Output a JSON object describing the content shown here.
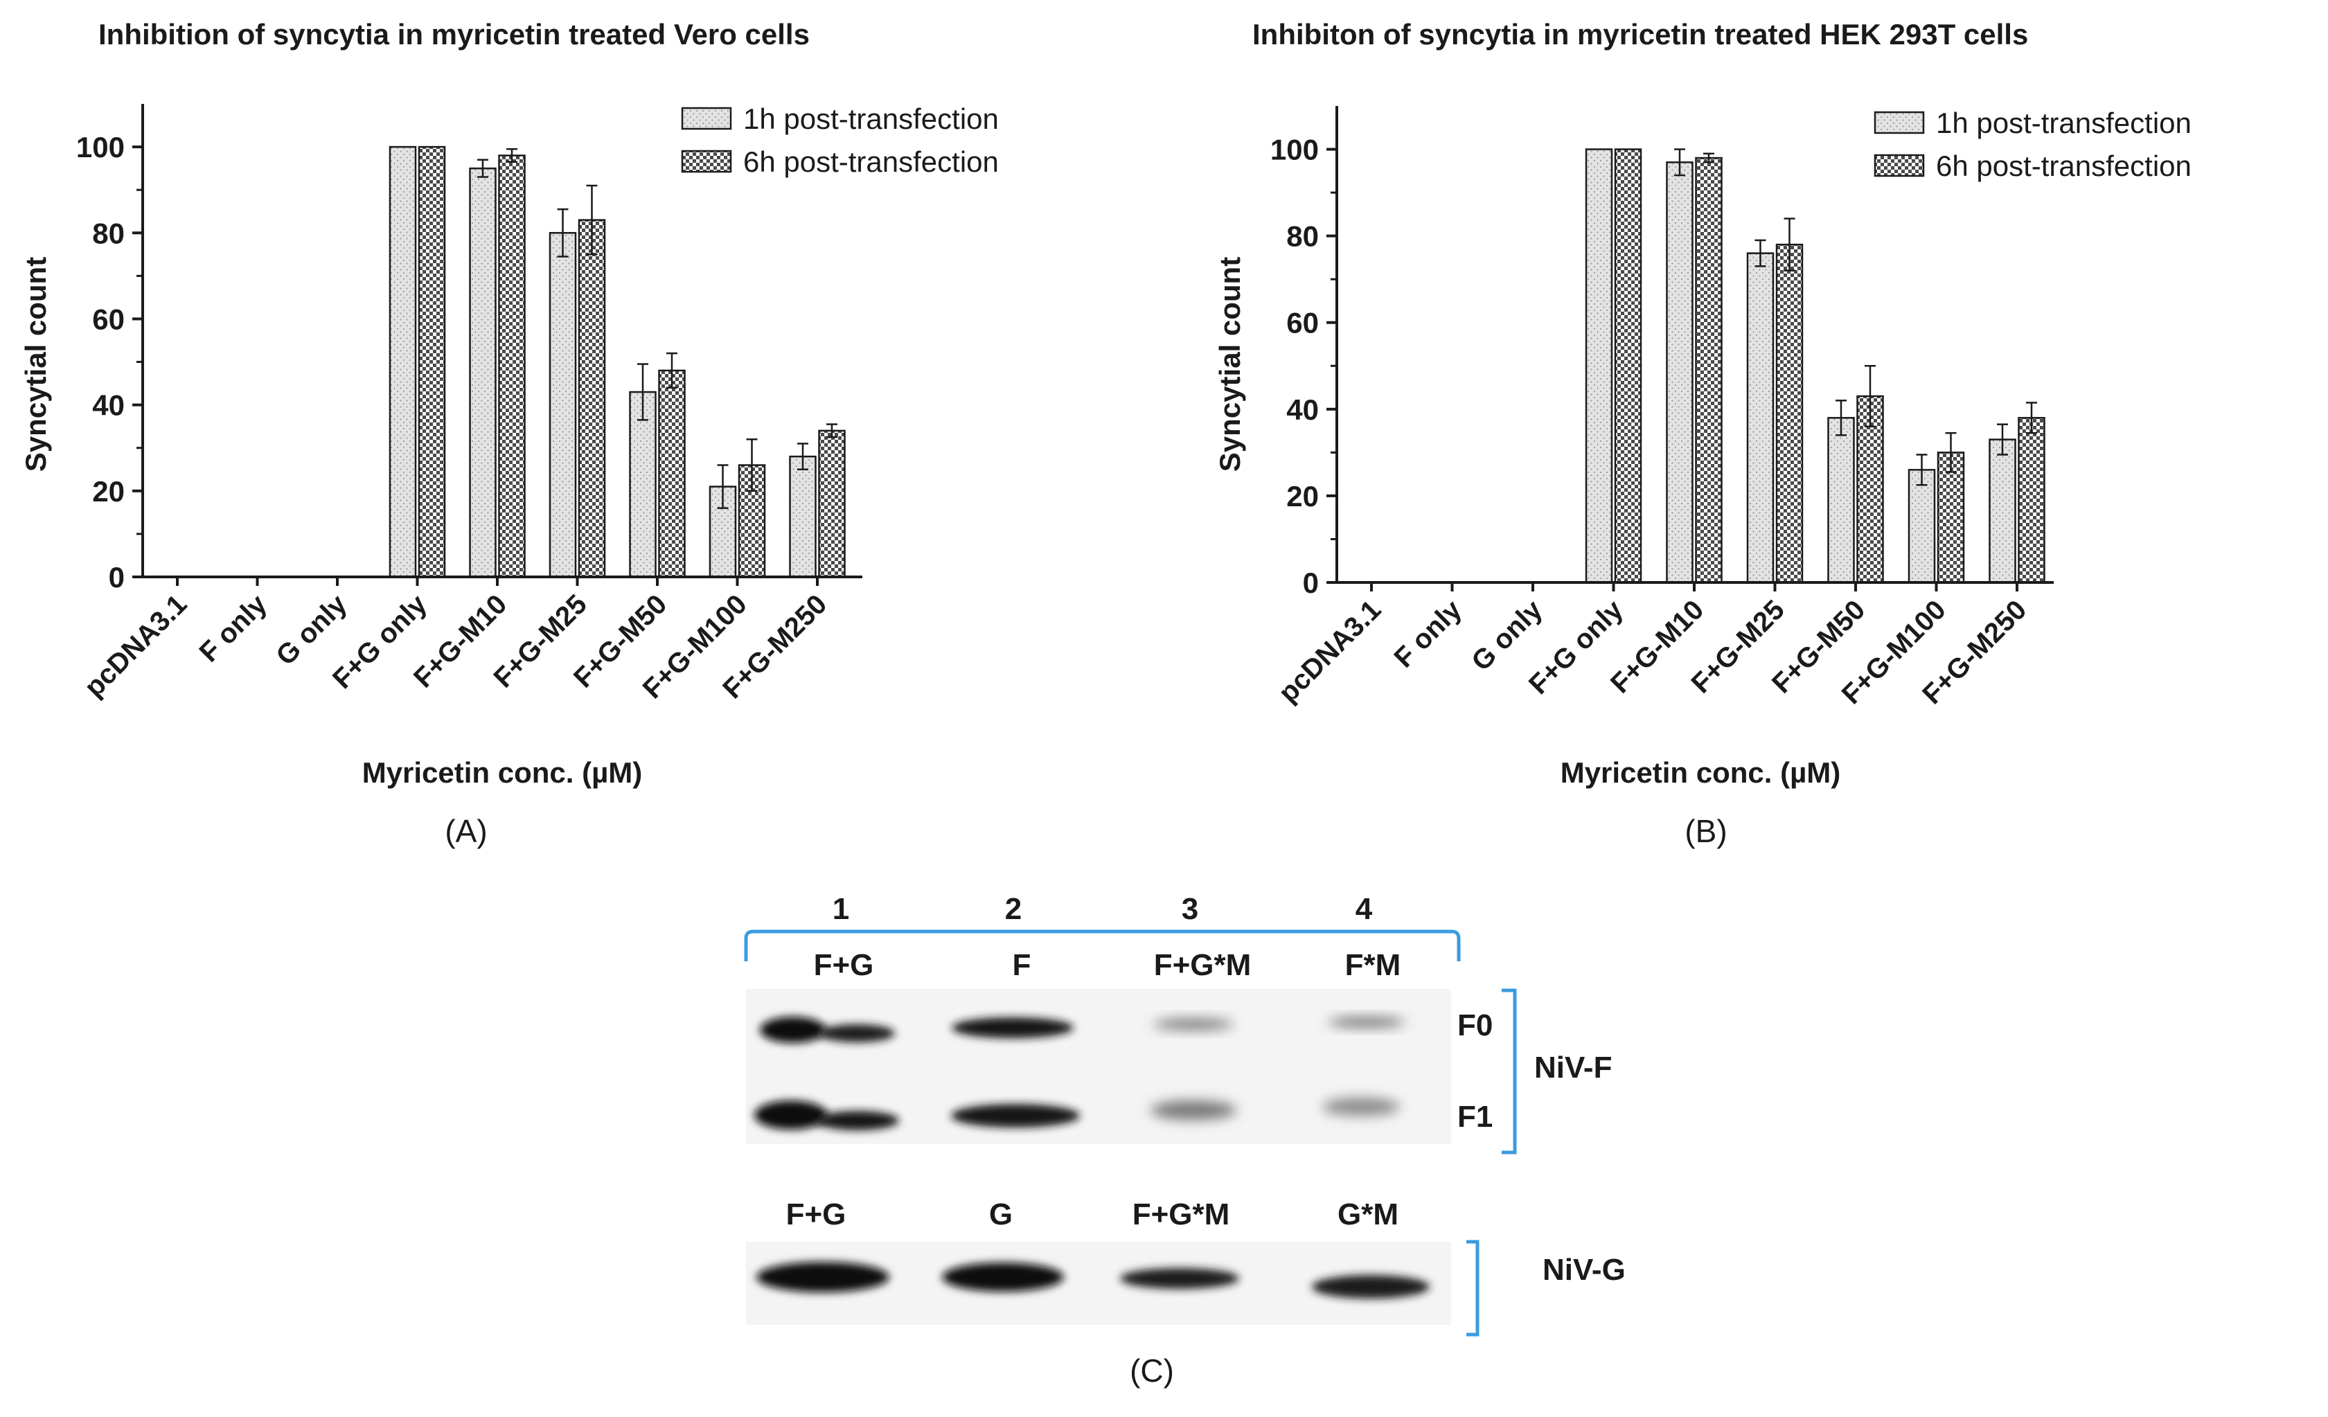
{
  "colors": {
    "ink": "#1a1a1a",
    "bar_fill": "#e3e3e3",
    "bracket": "#3b9be0"
  },
  "chart_data": [
    {
      "type": "bar",
      "title": "Inhibition of syncytia in myricetin treated Vero cells",
      "xlabel": "Myricetin conc. (µM)",
      "ylabel": "Syncytial count",
      "ylim": [
        0,
        110
      ],
      "yticks": [
        0,
        20,
        40,
        60,
        80,
        100
      ],
      "grid": false,
      "legend_position": "top-right",
      "categories": [
        "pcDNA3.1",
        "F only",
        "G only",
        "F+G only",
        "F+G-M10",
        "F+G-M25",
        "F+G-M50",
        "F+G-M100",
        "F+G-M250"
      ],
      "series": [
        {
          "name": "1h post-transfection",
          "pattern": "dots",
          "values": [
            0,
            0,
            0,
            100,
            95,
            80,
            43,
            21,
            28
          ],
          "errors": [
            0,
            0,
            0,
            0,
            2,
            5.5,
            6.5,
            5,
            3
          ]
        },
        {
          "name": "6h post-transfection",
          "pattern": "checker",
          "values": [
            0,
            0,
            0,
            100,
            98,
            83,
            48,
            26,
            34
          ],
          "errors": [
            0,
            0,
            0,
            0,
            1.5,
            8,
            4,
            6,
            1.5
          ]
        }
      ],
      "panel_label": "(A)"
    },
    {
      "type": "bar",
      "title": "Inhibiton of syncytia in myricetin treated HEK 293T cells",
      "xlabel": "Myricetin conc. (µM)",
      "ylabel": "Syncytial count",
      "ylim": [
        0,
        110
      ],
      "yticks": [
        0,
        20,
        40,
        60,
        80,
        100
      ],
      "grid": false,
      "legend_position": "top-right",
      "categories": [
        "pcDNA3.1",
        "F only",
        "G only",
        "F+G only",
        "F+G-M10",
        "F+G-M25",
        "F+G-M50",
        "F+G-M100",
        "F+G-M250"
      ],
      "series": [
        {
          "name": "1h post-transfection",
          "pattern": "dots",
          "values": [
            0,
            0,
            0,
            100,
            97,
            76,
            38,
            26,
            33
          ],
          "errors": [
            0,
            0,
            0,
            0,
            3,
            3,
            4,
            3.5,
            3.5
          ]
        },
        {
          "name": "6h post-transfection",
          "pattern": "checker",
          "values": [
            0,
            0,
            0,
            100,
            98,
            78,
            43,
            30,
            38
          ],
          "errors": [
            0,
            0,
            0,
            0,
            1,
            6,
            7,
            4.5,
            3.5
          ]
        }
      ],
      "panel_label": "(B)"
    }
  ],
  "blot": {
    "lane_numbers": [
      "1",
      "2",
      "3",
      "4"
    ],
    "top_lane_labels": [
      "F+G",
      "F",
      "F+G*M",
      "F*M"
    ],
    "band_labels": [
      "F0",
      "F1"
    ],
    "top_protein": "NiV-F",
    "bottom_lane_labels": [
      "F+G",
      "G",
      "F+G*M",
      "G*M"
    ],
    "bottom_protein": "NiV-G",
    "panel_label": "(C)"
  }
}
